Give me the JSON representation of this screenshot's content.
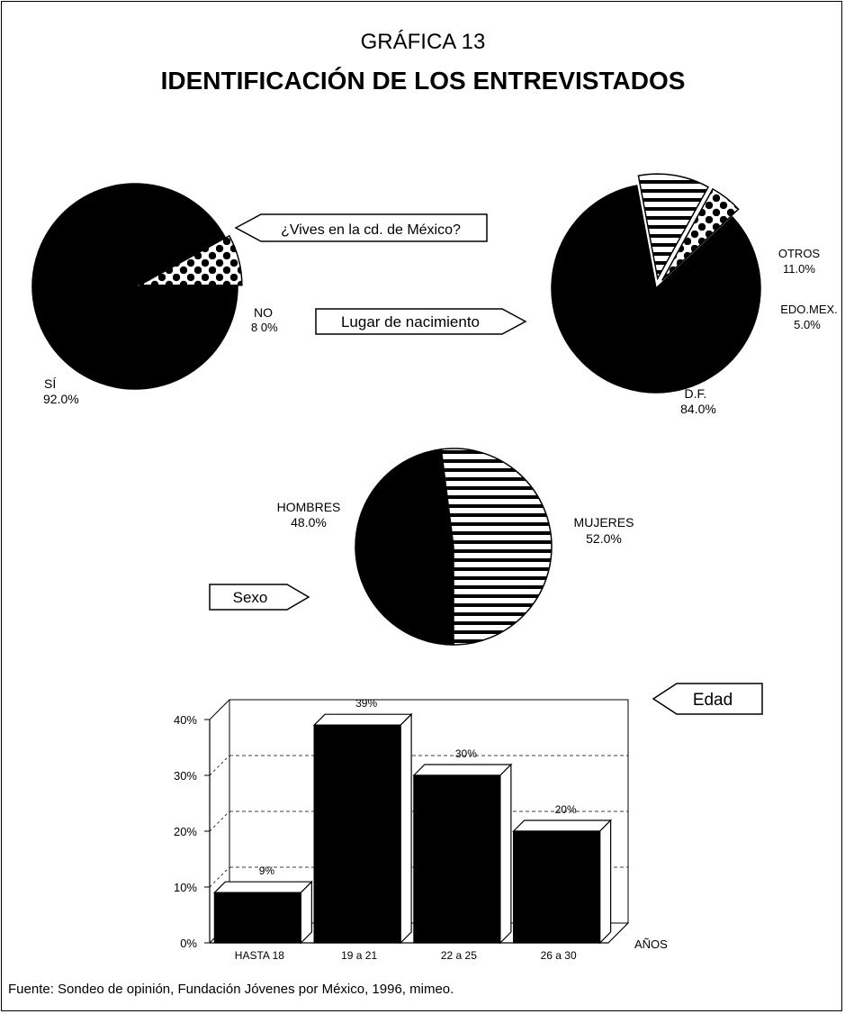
{
  "header": {
    "kicker": "GRÁFICA 13",
    "title": "IDENTIFICACIÓN DE LOS ENTREVISTADOS"
  },
  "source_note": "Fuente:  Sondeo de opinión, Fundación Jóvenes por México, 1996, mimeo.",
  "colors": {
    "ink": "#000000",
    "paper": "#ffffff"
  },
  "chart_data": [
    {
      "type": "pie",
      "title": "¿Vives en la cd. de México?",
      "slices": [
        {
          "label": "SÍ",
          "value": 92.0,
          "display": "92.0%",
          "pattern": "solid"
        },
        {
          "label": "NO",
          "value": 8.0,
          "display": "8 0%",
          "pattern": "dots",
          "exploded": true
        }
      ]
    },
    {
      "type": "pie",
      "title": "Lugar de nacimiento",
      "slices": [
        {
          "label": "D.F.",
          "value": 84.0,
          "display": "84.0%",
          "pattern": "solid"
        },
        {
          "label": "OTROS",
          "value": 11.0,
          "display": "11.0%",
          "pattern": "stripes",
          "exploded": true
        },
        {
          "label": "EDO.MEX.",
          "value": 5.0,
          "display": "5.0%",
          "pattern": "dots",
          "exploded": true
        }
      ]
    },
    {
      "type": "pie",
      "title": "Sexo",
      "slices": [
        {
          "label": "HOMBRES",
          "value": 48.0,
          "display": "48.0%",
          "pattern": "solid"
        },
        {
          "label": "MUJERES",
          "value": 52.0,
          "display": "52.0%",
          "pattern": "stripes"
        }
      ]
    },
    {
      "type": "bar",
      "title": "Edad",
      "xlabel": "AÑOS",
      "ylabel": "",
      "categories": [
        "HASTA 18",
        "19 a 21",
        "22 a 25",
        "26 a 30"
      ],
      "values": [
        9,
        39,
        30,
        20
      ],
      "value_labels": [
        "9%",
        "39%",
        "30%",
        "20%"
      ],
      "ylim": [
        0,
        40
      ],
      "yticks": [
        "0%",
        "10%",
        "20%",
        "30%",
        "40%"
      ],
      "grid": true,
      "style": "3d"
    }
  ]
}
